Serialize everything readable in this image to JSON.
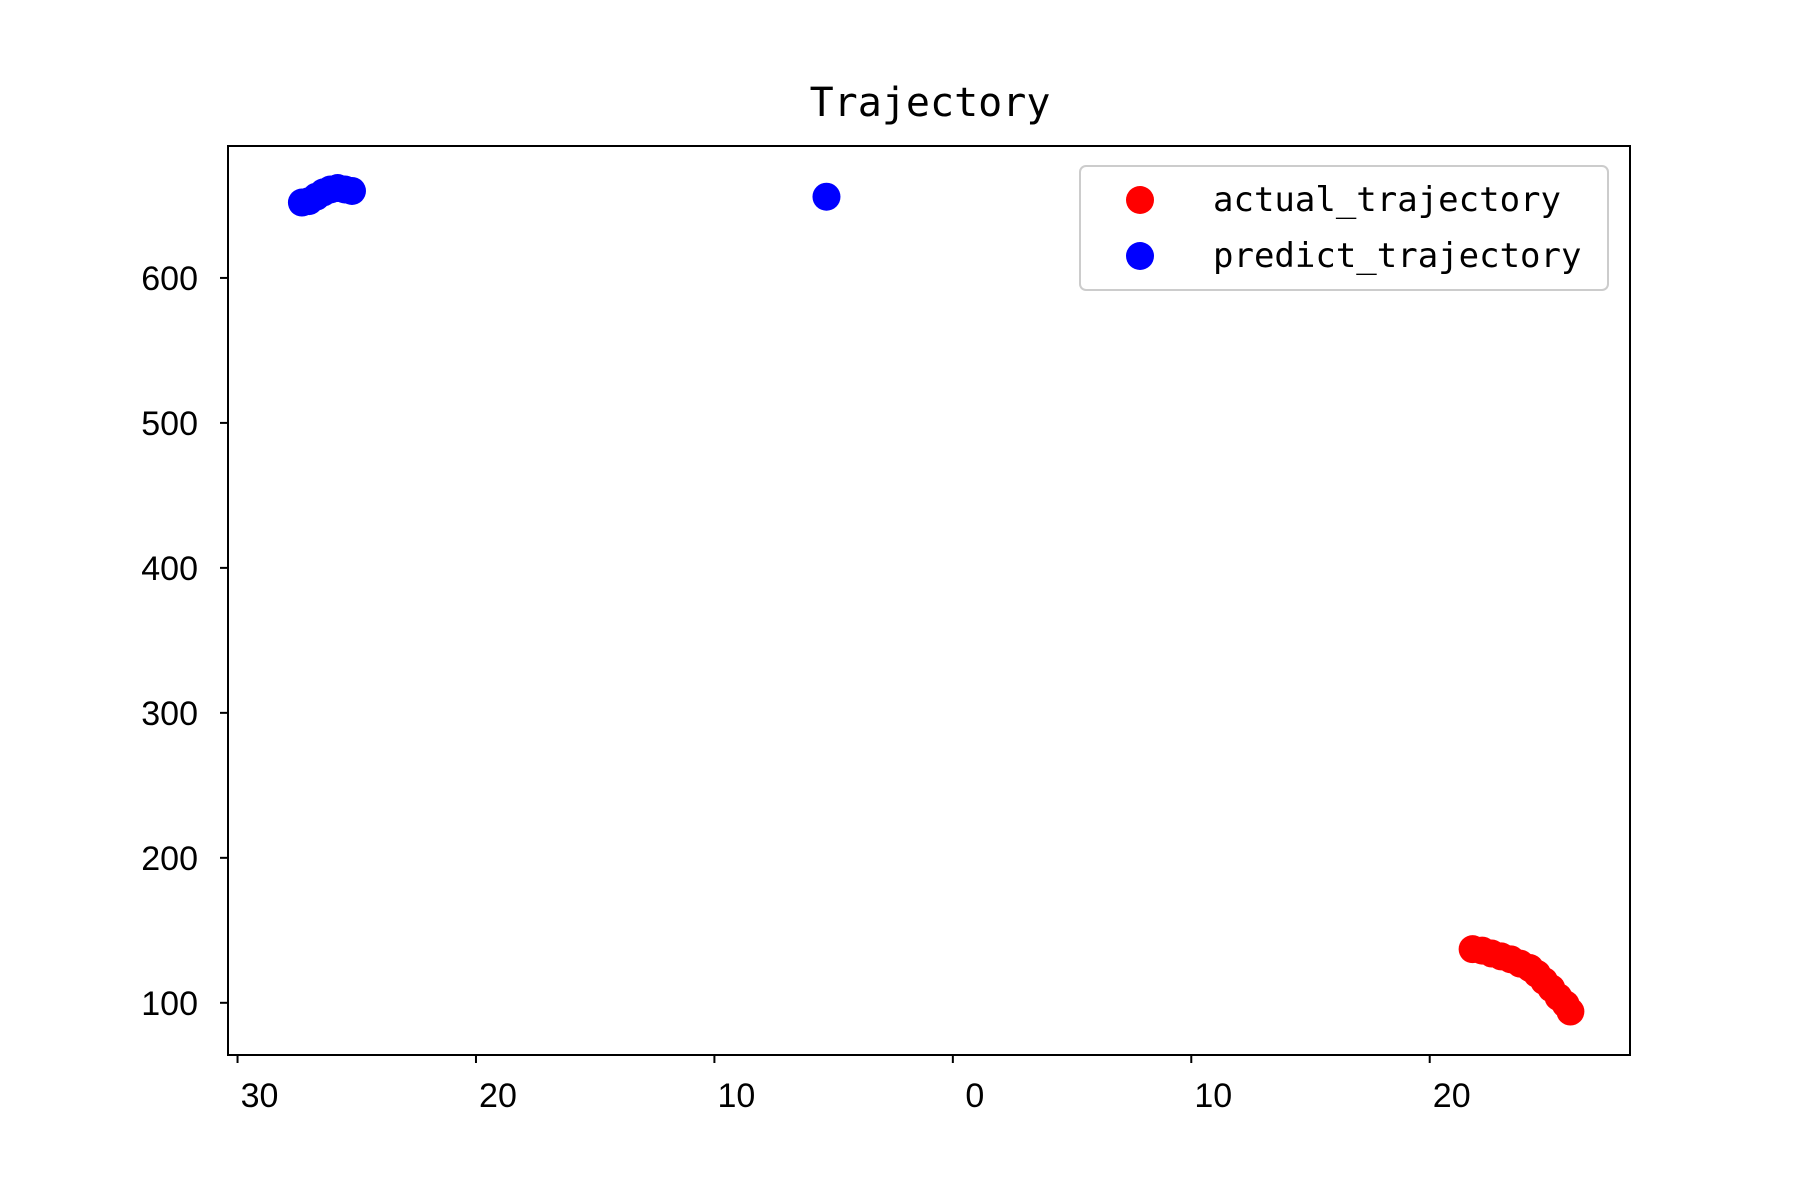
{
  "chart_data": {
    "type": "scatter",
    "title": "Trajectory",
    "xlabel": "",
    "ylabel": "",
    "xlim": [
      -30.4,
      28.4
    ],
    "ylim": [
      64,
      691
    ],
    "x_ticks": [
      {
        "value": -30,
        "label": "30"
      },
      {
        "value": -20,
        "label": "20"
      },
      {
        "value": -10,
        "label": "10"
      },
      {
        "value": 0,
        "label": "0"
      },
      {
        "value": 10,
        "label": "10"
      },
      {
        "value": 20,
        "label": "20"
      }
    ],
    "y_ticks": [
      {
        "value": 100,
        "label": "100"
      },
      {
        "value": 200,
        "label": "200"
      },
      {
        "value": 300,
        "label": "300"
      },
      {
        "value": 400,
        "label": "400"
      },
      {
        "value": 500,
        "label": "500"
      },
      {
        "value": 600,
        "label": "600"
      }
    ],
    "grid": false,
    "legend_position": "top-right",
    "series": [
      {
        "name": "actual_trajectory",
        "color": "#ff0000",
        "points": [
          {
            "x": 21.8,
            "y": 137
          },
          {
            "x": 22.2,
            "y": 136
          },
          {
            "x": 22.6,
            "y": 134
          },
          {
            "x": 23.0,
            "y": 132
          },
          {
            "x": 23.4,
            "y": 130
          },
          {
            "x": 23.8,
            "y": 127
          },
          {
            "x": 24.2,
            "y": 124
          },
          {
            "x": 24.5,
            "y": 120
          },
          {
            "x": 24.8,
            "y": 115
          },
          {
            "x": 25.1,
            "y": 110
          },
          {
            "x": 25.4,
            "y": 104
          },
          {
            "x": 25.7,
            "y": 99
          },
          {
            "x": 25.9,
            "y": 94
          }
        ]
      },
      {
        "name": "predict_trajectory",
        "color": "#0000ff",
        "points": [
          {
            "x": -27.3,
            "y": 652
          },
          {
            "x": -27.0,
            "y": 653
          },
          {
            "x": -26.7,
            "y": 656
          },
          {
            "x": -26.4,
            "y": 659
          },
          {
            "x": -26.1,
            "y": 661
          },
          {
            "x": -25.8,
            "y": 662
          },
          {
            "x": -25.5,
            "y": 661
          },
          {
            "x": -25.2,
            "y": 660
          },
          {
            "x": -5.3,
            "y": 656
          }
        ]
      }
    ]
  }
}
